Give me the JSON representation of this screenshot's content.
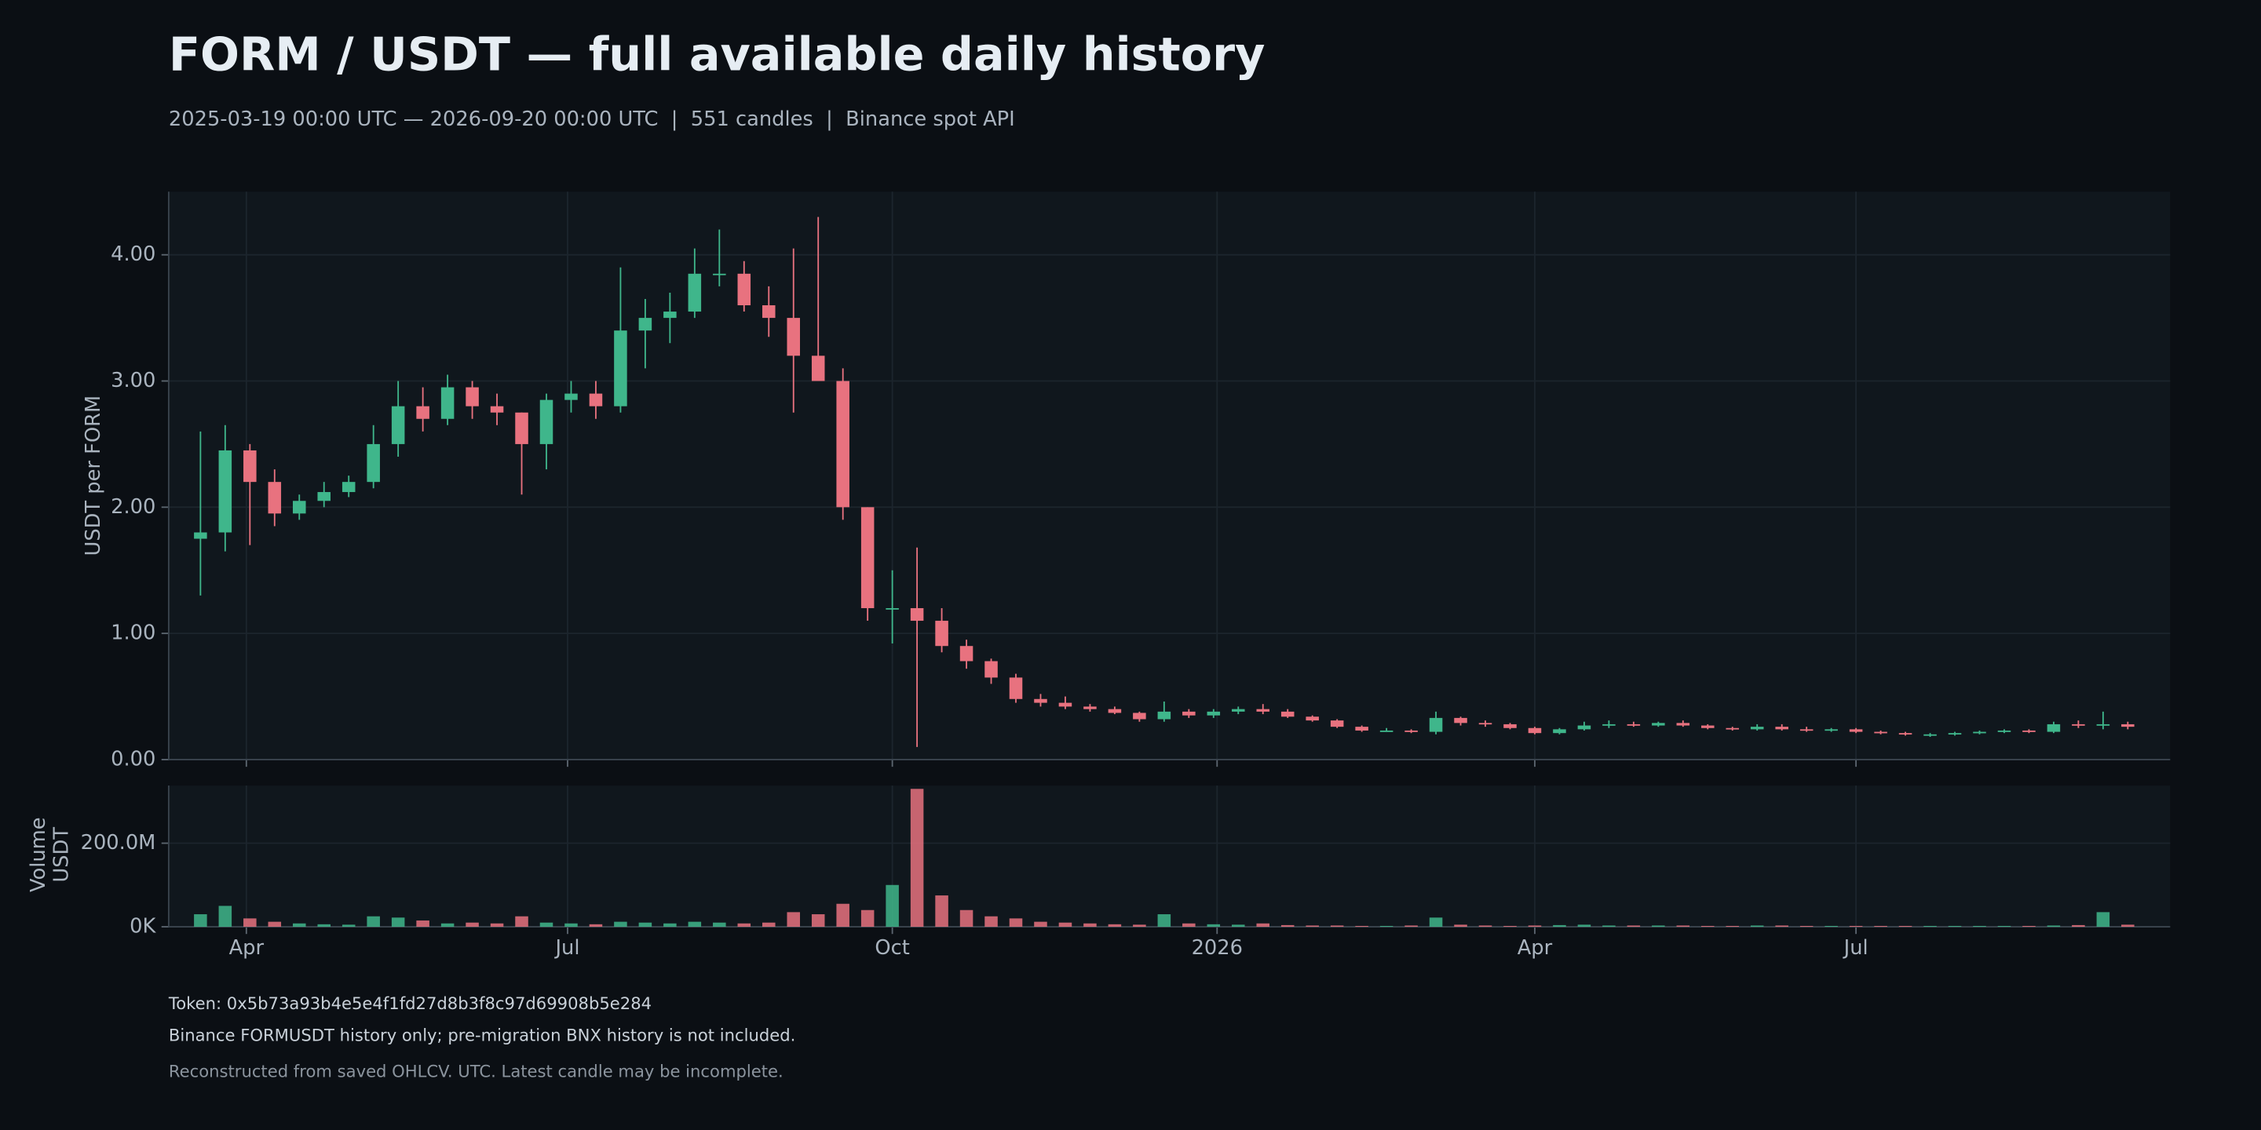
{
  "chart_data": [
    {
      "type": "candlestick",
      "title": "FORM / USDT — full available daily history",
      "subtitle": "2025-03-19 00:00 UTC — 2026-09-20 00:00 UTC  |  551 candles  |  Binance spot API",
      "ylabel": "USDT per FORM",
      "up_color": "#3fb68b",
      "down_color": "#e8727f",
      "grid": true,
      "xlim": [
        "2025-03-10",
        "2026-09-28"
      ],
      "ylim": [
        0,
        4.5
      ],
      "yticks": [
        {
          "value": 0,
          "label": "0.00"
        },
        {
          "value": 1,
          "label": "1.00"
        },
        {
          "value": 2,
          "label": "2.00"
        },
        {
          "value": 3,
          "label": "3.00"
        },
        {
          "value": 4,
          "label": "4.00"
        }
      ],
      "x": [
        "2025-03-19",
        "2025-03-26",
        "2025-04-02",
        "2025-04-09",
        "2025-04-16",
        "2025-04-23",
        "2025-04-30",
        "2025-05-07",
        "2025-05-14",
        "2025-05-21",
        "2025-05-28",
        "2025-06-04",
        "2025-06-11",
        "2025-06-18",
        "2025-06-25",
        "2025-07-02",
        "2025-07-09",
        "2025-07-16",
        "2025-07-23",
        "2025-07-30",
        "2025-08-06",
        "2025-08-13",
        "2025-08-20",
        "2025-08-27",
        "2025-09-03",
        "2025-09-10",
        "2025-09-17",
        "2025-09-24",
        "2025-10-01",
        "2025-10-08",
        "2025-10-15",
        "2025-10-22",
        "2025-10-29",
        "2025-11-05",
        "2025-11-12",
        "2025-11-19",
        "2025-11-26",
        "2025-12-03",
        "2025-12-10",
        "2025-12-17",
        "2025-12-24",
        "2025-12-31",
        "2026-01-07",
        "2026-01-14",
        "2026-01-21",
        "2026-01-28",
        "2026-02-04",
        "2026-02-11",
        "2026-02-18",
        "2026-02-25",
        "2026-03-04",
        "2026-03-11",
        "2026-03-18",
        "2026-03-25",
        "2026-04-01",
        "2026-04-08",
        "2026-04-15",
        "2026-04-22",
        "2026-04-29",
        "2026-05-06",
        "2026-05-13",
        "2026-05-20",
        "2026-05-27",
        "2026-06-03",
        "2026-06-10",
        "2026-06-17",
        "2026-06-24",
        "2026-07-01",
        "2026-07-08",
        "2026-07-15",
        "2026-07-22",
        "2026-07-29",
        "2026-08-05",
        "2026-08-12",
        "2026-08-19",
        "2026-08-26",
        "2026-09-02",
        "2026-09-09",
        "2026-09-16"
      ],
      "open": [
        1.75,
        1.8,
        2.45,
        2.2,
        1.95,
        2.05,
        2.12,
        2.2,
        2.5,
        2.8,
        2.7,
        2.95,
        2.8,
        2.75,
        2.5,
        2.85,
        2.9,
        2.8,
        3.4,
        3.5,
        3.55,
        3.85,
        3.85,
        3.6,
        3.5,
        3.2,
        3.0,
        2.0,
        1.2,
        1.2,
        1.1,
        0.9,
        0.78,
        0.65,
        0.48,
        0.45,
        0.42,
        0.4,
        0.37,
        0.32,
        0.38,
        0.35,
        0.38,
        0.4,
        0.38,
        0.34,
        0.31,
        0.26,
        0.23,
        0.23,
        0.22,
        0.33,
        0.29,
        0.28,
        0.25,
        0.21,
        0.24,
        0.27,
        0.28,
        0.27,
        0.29,
        0.27,
        0.25,
        0.24,
        0.26,
        0.24,
        0.23,
        0.24,
        0.22,
        0.21,
        0.2,
        0.2,
        0.21,
        0.22,
        0.23,
        0.22,
        0.28,
        0.27,
        0.28
      ],
      "high": [
        2.6,
        2.65,
        2.5,
        2.3,
        2.1,
        2.2,
        2.25,
        2.65,
        3.0,
        2.95,
        3.05,
        3.0,
        2.9,
        2.75,
        2.9,
        3.0,
        3.0,
        3.9,
        3.65,
        3.7,
        4.05,
        4.2,
        3.95,
        3.75,
        4.05,
        4.3,
        3.1,
        2.0,
        1.5,
        1.68,
        1.2,
        0.95,
        0.8,
        0.68,
        0.52,
        0.5,
        0.44,
        0.42,
        0.38,
        0.46,
        0.4,
        0.4,
        0.42,
        0.44,
        0.4,
        0.35,
        0.32,
        0.27,
        0.25,
        0.24,
        0.38,
        0.34,
        0.31,
        0.29,
        0.26,
        0.25,
        0.3,
        0.31,
        0.3,
        0.3,
        0.31,
        0.28,
        0.26,
        0.28,
        0.28,
        0.26,
        0.25,
        0.25,
        0.23,
        0.22,
        0.21,
        0.22,
        0.23,
        0.24,
        0.24,
        0.3,
        0.31,
        0.38,
        0.3
      ],
      "low": [
        1.3,
        1.65,
        1.7,
        1.85,
        1.9,
        2.0,
        2.08,
        2.15,
        2.4,
        2.6,
        2.65,
        2.7,
        2.65,
        2.1,
        2.3,
        2.75,
        2.7,
        2.75,
        3.1,
        3.3,
        3.5,
        3.75,
        3.55,
        3.35,
        2.75,
        3.0,
        1.9,
        1.1,
        0.92,
        0.1,
        0.85,
        0.72,
        0.6,
        0.45,
        0.42,
        0.4,
        0.38,
        0.36,
        0.3,
        0.3,
        0.33,
        0.33,
        0.36,
        0.36,
        0.33,
        0.3,
        0.25,
        0.22,
        0.22,
        0.21,
        0.2,
        0.27,
        0.26,
        0.24,
        0.2,
        0.2,
        0.23,
        0.25,
        0.26,
        0.26,
        0.26,
        0.24,
        0.23,
        0.23,
        0.23,
        0.22,
        0.22,
        0.21,
        0.2,
        0.19,
        0.18,
        0.19,
        0.2,
        0.21,
        0.21,
        0.21,
        0.25,
        0.24,
        0.24
      ],
      "close": [
        1.8,
        2.45,
        2.2,
        1.95,
        2.05,
        2.12,
        2.2,
        2.5,
        2.8,
        2.7,
        2.95,
        2.8,
        2.75,
        2.5,
        2.85,
        2.9,
        2.8,
        3.4,
        3.5,
        3.55,
        3.85,
        3.85,
        3.6,
        3.5,
        3.2,
        3.0,
        2.0,
        1.2,
        1.2,
        1.1,
        0.9,
        0.78,
        0.65,
        0.48,
        0.45,
        0.42,
        0.4,
        0.37,
        0.32,
        0.38,
        0.35,
        0.38,
        0.4,
        0.38,
        0.34,
        0.31,
        0.26,
        0.23,
        0.23,
        0.22,
        0.33,
        0.29,
        0.28,
        0.25,
        0.21,
        0.24,
        0.27,
        0.28,
        0.27,
        0.29,
        0.27,
        0.25,
        0.24,
        0.26,
        0.24,
        0.23,
        0.24,
        0.22,
        0.21,
        0.2,
        0.2,
        0.21,
        0.22,
        0.23,
        0.22,
        0.28,
        0.27,
        0.28,
        0.26
      ]
    },
    {
      "type": "bar",
      "ylabel": [
        "Volume",
        "USDT"
      ],
      "up_color": "#3fb68b",
      "down_color": "#e8727f",
      "grid": true,
      "xlim": [
        "2025-03-10",
        "2026-09-28"
      ],
      "xticks": [
        {
          "value": "2025-04-01",
          "label": "Apr"
        },
        {
          "value": "2025-07-01",
          "label": "Jul"
        },
        {
          "value": "2025-10-01",
          "label": "Oct"
        },
        {
          "value": "2026-01-01",
          "label": "2026"
        },
        {
          "value": "2026-04-01",
          "label": "Apr"
        },
        {
          "value": "2026-07-01",
          "label": "Jul"
        }
      ],
      "ylim": [
        0,
        338000000
      ],
      "yticks": [
        {
          "value": 0,
          "label": "0K"
        },
        {
          "value": 200000000,
          "label": "200.0M"
        }
      ],
      "x": [
        "2025-03-19",
        "2025-03-26",
        "2025-04-02",
        "2025-04-09",
        "2025-04-16",
        "2025-04-23",
        "2025-04-30",
        "2025-05-07",
        "2025-05-14",
        "2025-05-21",
        "2025-05-28",
        "2025-06-04",
        "2025-06-11",
        "2025-06-18",
        "2025-06-25",
        "2025-07-02",
        "2025-07-09",
        "2025-07-16",
        "2025-07-23",
        "2025-07-30",
        "2025-08-06",
        "2025-08-13",
        "2025-08-20",
        "2025-08-27",
        "2025-09-03",
        "2025-09-10",
        "2025-09-17",
        "2025-09-24",
        "2025-10-01",
        "2025-10-08",
        "2025-10-15",
        "2025-10-22",
        "2025-10-29",
        "2025-11-05",
        "2025-11-12",
        "2025-11-19",
        "2025-11-26",
        "2025-12-03",
        "2025-12-10",
        "2025-12-17",
        "2025-12-24",
        "2025-12-31",
        "2026-01-07",
        "2026-01-14",
        "2026-01-21",
        "2026-01-28",
        "2026-02-04",
        "2026-02-11",
        "2026-02-18",
        "2026-02-25",
        "2026-03-04",
        "2026-03-11",
        "2026-03-18",
        "2026-03-25",
        "2026-04-01",
        "2026-04-08",
        "2026-04-15",
        "2026-04-22",
        "2026-04-29",
        "2026-05-06",
        "2026-05-13",
        "2026-05-20",
        "2026-05-27",
        "2026-06-03",
        "2026-06-10",
        "2026-06-17",
        "2026-06-24",
        "2026-07-01",
        "2026-07-08",
        "2026-07-15",
        "2026-07-22",
        "2026-07-29",
        "2026-08-05",
        "2026-08-12",
        "2026-08-19",
        "2026-08-26",
        "2026-09-02",
        "2026-09-09",
        "2026-09-16"
      ],
      "values": [
        30000000,
        50000000,
        20000000,
        12000000,
        8000000,
        6000000,
        5000000,
        25000000,
        22000000,
        15000000,
        8000000,
        10000000,
        8000000,
        25000000,
        10000000,
        8000000,
        6000000,
        12000000,
        10000000,
        8000000,
        12000000,
        10000000,
        8000000,
        10000000,
        35000000,
        30000000,
        55000000,
        40000000,
        100000000,
        330000000,
        75000000,
        40000000,
        25000000,
        20000000,
        12000000,
        10000000,
        8000000,
        6000000,
        5000000,
        30000000,
        8000000,
        6000000,
        5000000,
        8000000,
        4000000,
        3000000,
        3000000,
        2000000,
        2000000,
        3000000,
        22000000,
        5000000,
        3000000,
        2000000,
        3000000,
        4000000,
        5000000,
        3000000,
        3000000,
        3000000,
        3000000,
        2000000,
        2000000,
        3000000,
        3000000,
        2000000,
        2000000,
        2000000,
        2000000,
        2000000,
        2000000,
        2000000,
        2000000,
        2000000,
        2000000,
        3000000,
        4000000,
        35000000,
        5000000
      ]
    }
  ],
  "notes": [
    "Token: 0x5b73a93b4e5e4f1fd27d8b3f8c97d69908b5e284",
    "Binance FORMUSDT history only; pre-migration BNX history is not included.",
    "Reconstructed from saved OHLCV. UTC. Latest candle may be incomplete."
  ]
}
